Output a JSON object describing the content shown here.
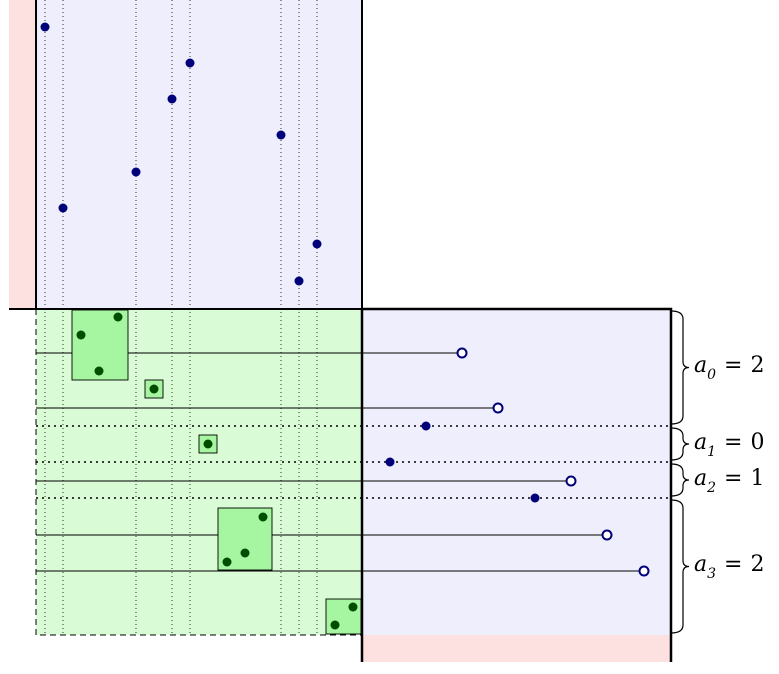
{
  "labels": [
    {
      "var": "a",
      "sub": "0",
      "op": "=",
      "val": "2"
    },
    {
      "var": "a",
      "sub": "1",
      "op": "=",
      "val": "0"
    },
    {
      "var": "a",
      "sub": "2",
      "op": "=",
      "val": "1"
    },
    {
      "var": "a",
      "sub": "3",
      "op": "=",
      "val": "2"
    }
  ],
  "colors": {
    "blue_region": "#eeeefc",
    "green_region": "#d9fbd5",
    "red_strip": "#fde1e1",
    "green_box": "#a6f5a0",
    "point_blue": "#00007a",
    "point_green": "#004d00",
    "frame": "#000000"
  }
}
